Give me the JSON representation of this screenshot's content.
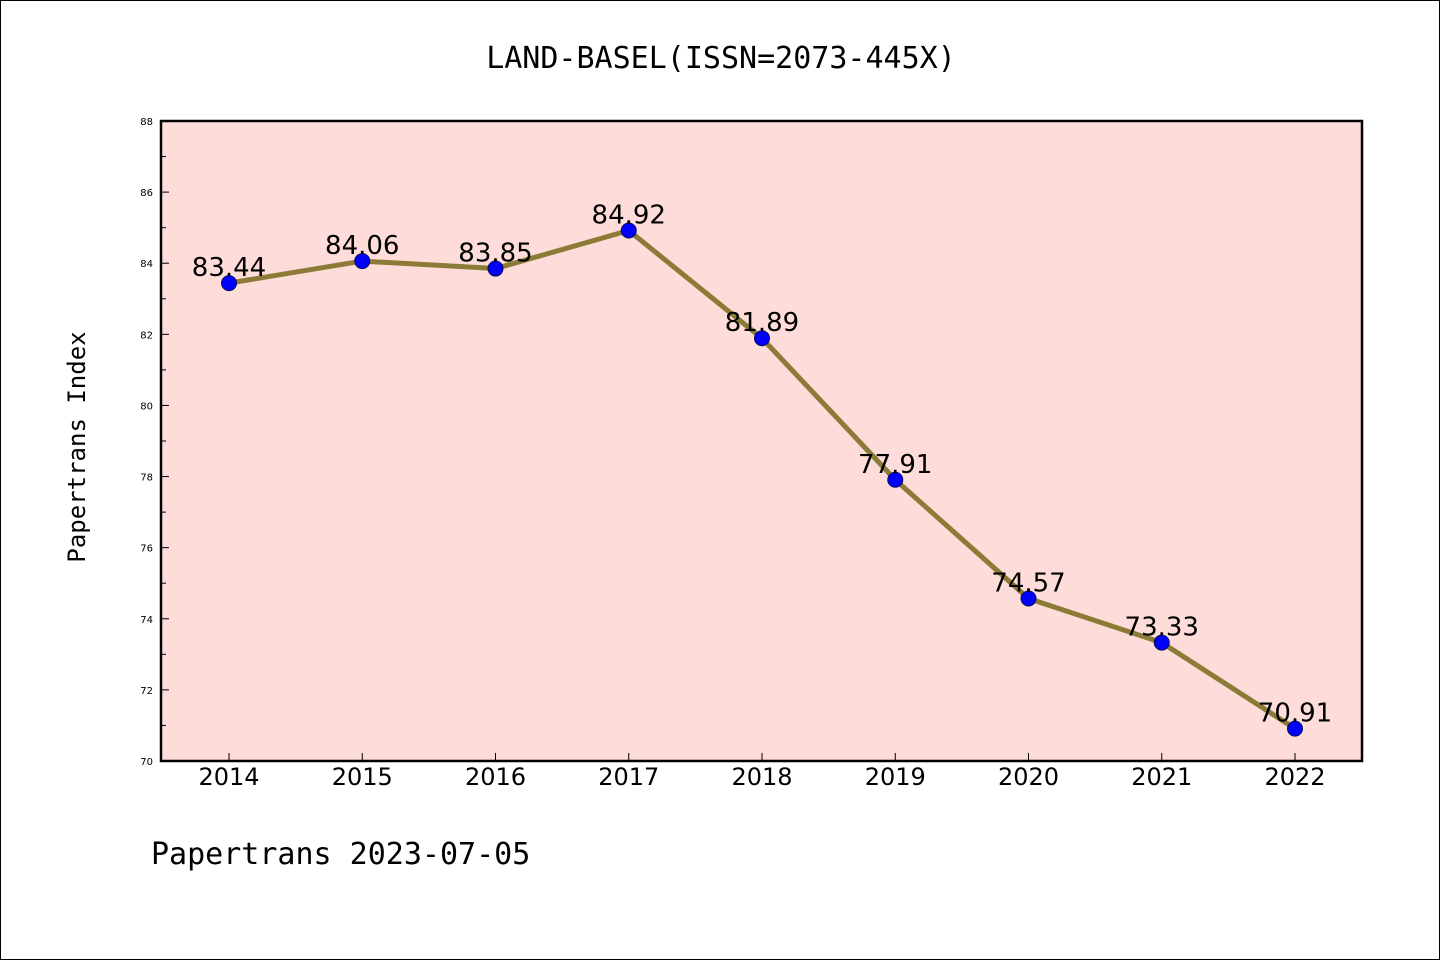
{
  "colors": {
    "plot_background": "#fddcd9",
    "line": "#8b7b36",
    "marker_fill": "#0000ff",
    "marker_edge": "#0b0b5a",
    "axis": "#000000"
  },
  "footer": "Papertrans 2023-07-05",
  "chart_data": {
    "type": "line",
    "title": "LAND-BASEL(ISSN=2073-445X)",
    "xlabel": "",
    "ylabel": "Papertrans Index",
    "categories": [
      "2014",
      "2015",
      "2016",
      "2017",
      "2018",
      "2019",
      "2020",
      "2021",
      "2022"
    ],
    "values": [
      83.44,
      84.06,
      83.85,
      84.92,
      81.89,
      77.91,
      74.57,
      73.33,
      70.91
    ],
    "data_labels": [
      "83.44",
      "84.06",
      "83.85",
      "84.92",
      "81.89",
      "77.91",
      "74.57",
      "73.33",
      "70.91"
    ],
    "ylim": [
      70,
      88
    ],
    "yticks": [
      "70",
      "72",
      "74",
      "76",
      "78",
      "80",
      "82",
      "84",
      "86",
      "88"
    ],
    "grid": false,
    "legend": "none"
  }
}
